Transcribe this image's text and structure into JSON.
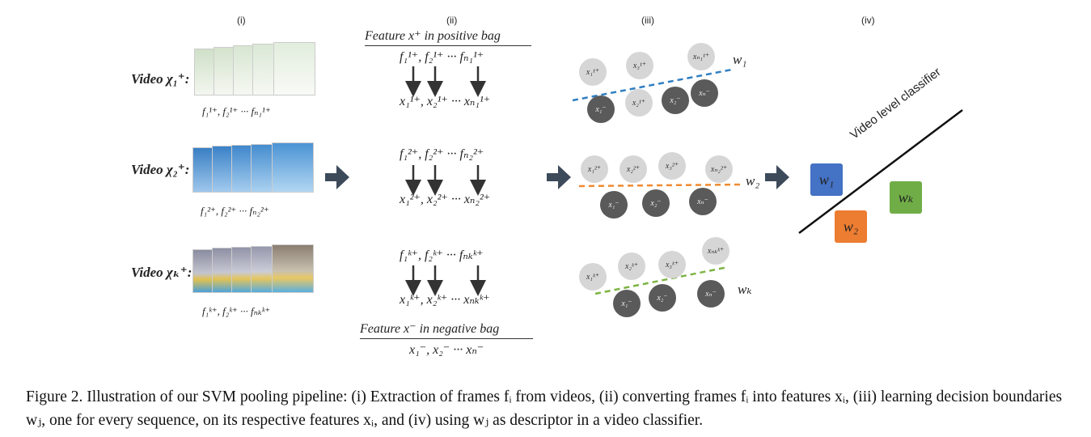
{
  "columns": [
    "(i)",
    "(ii)",
    "(iii)",
    "(iv)"
  ],
  "videos": [
    {
      "label": "Video χ₁⁺:",
      "frames": "f₁¹⁺, f₂¹⁺ ··· fₙ₁¹⁺"
    },
    {
      "label": "Video χ₂⁺:",
      "frames": "f₁²⁺, f₂²⁺ ··· fₙ₂²⁺"
    },
    {
      "label": "Video χₖ⁺:",
      "frames": "f₁ᵏ⁺, f₂ᵏ⁺ ··· fₙₖᵏ⁺"
    }
  ],
  "features": {
    "positive_bag_title": "Feature x⁺ in positive bag",
    "rows": [
      {
        "frames": "f₁¹⁺, f₂¹⁺ ··· fₙ₁¹⁺",
        "feats": "x₁¹⁺, x₂¹⁺ ··· xₙ₁¹⁺"
      },
      {
        "frames": "f₁²⁺, f₂²⁺ ··· fₙ₂²⁺",
        "feats": "x₁²⁺, x₂²⁺ ··· xₙ₂²⁺"
      },
      {
        "frames": "f₁ᵏ⁺, f₂ᵏ⁺ ··· fₙₖᵏ⁺",
        "feats": "x₁ᵏ⁺, x₂ᵏ⁺ ··· xₙₖᵏ⁺"
      }
    ],
    "negative_bag_title": "Feature x⁻ in negative bag",
    "negative_feats": "x₁⁻, x₂⁻ ··· xₙ⁻"
  },
  "boundaries": [
    {
      "w": "w₁",
      "color": "#2f7fc1",
      "pos": [
        "x₁¹⁺",
        "x₃¹⁺",
        "xₙ₁¹⁺",
        "x₂¹⁺"
      ],
      "neg": [
        "x₁⁻",
        "x₂⁻",
        "xₙ⁻"
      ]
    },
    {
      "w": "w₂",
      "color": "#f08a30",
      "pos": [
        "x₁²⁺",
        "x₂²⁺",
        "x₃²⁺",
        "xₙ₂²⁺"
      ],
      "neg": [
        "x₁⁻",
        "x₂⁻",
        "xₙ⁻"
      ]
    },
    {
      "w": "wₖ",
      "color": "#7cb342",
      "pos": [
        "x₁ᵏ⁺",
        "x₂ᵏ⁺",
        "x₃ᵏ⁺",
        "xₙₖᵏ⁺"
      ],
      "neg": [
        "x₁⁻",
        "x₂⁻",
        "xₙ⁻"
      ]
    }
  ],
  "classifier": {
    "label": "Video level classifier",
    "boxes": [
      {
        "text": "w₁",
        "color": "#4472c4"
      },
      {
        "text": "w₂",
        "color": "#ed7d31"
      },
      {
        "text": "wₖ",
        "color": "#70ad47"
      }
    ]
  },
  "caption": "Figure 2. Illustration of our SVM pooling pipeline: (i) Extraction of frames fᵢ from videos, (ii) converting frames fᵢ into features xᵢ, (iii) learning decision boundaries wⱼ, one for every sequence, on its respective features xᵢ, and (iv) using wⱼ as descriptor in a video classifier."
}
